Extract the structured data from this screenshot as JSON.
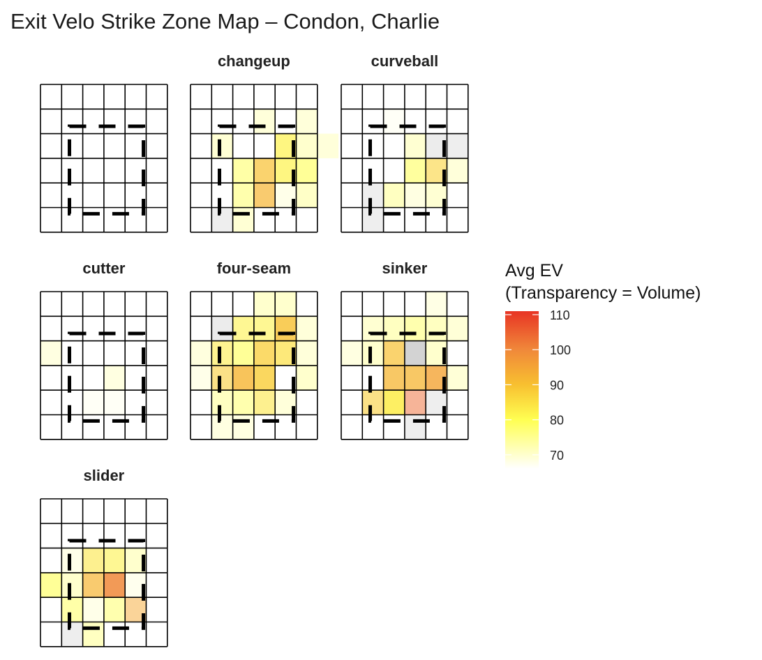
{
  "chart_data": {
    "type": "heatmap",
    "title": "Exit Velo Strike Zone Map – Condon, Charlie",
    "legend": {
      "title_lines": [
        "Avg EV",
        "(Transparency = Volume)"
      ],
      "ticks": [
        70,
        80,
        90,
        100,
        110
      ],
      "range": [
        66,
        111
      ],
      "gradient": [
        {
          "value": 66,
          "color": "#ffffff"
        },
        {
          "value": 80,
          "color": "#ffff52"
        },
        {
          "value": 90,
          "color": "#f8c030"
        },
        {
          "value": 100,
          "color": "#f0883a"
        },
        {
          "value": 111,
          "color": "#e83424"
        }
      ],
      "placement": "right"
    },
    "grid": {
      "rows": 6,
      "cols": 6,
      "strike_zone": "dashed box, columns 2-4, rows 2-5"
    },
    "cell_encoding": "each cell: [row, col, avg_ev, volume_alpha]; null avg_ev = grey cell",
    "pitch_types": [
      {
        "name": "",
        "cells": []
      },
      {
        "name": "changeup",
        "cells": [
          [
            1,
            3,
            72,
            0.5
          ],
          [
            1,
            5,
            72,
            0.5
          ],
          [
            2,
            1,
            73,
            0.5
          ],
          [
            2,
            4,
            82,
            0.7
          ],
          [
            2,
            5,
            74,
            0.5
          ],
          [
            2,
            6,
            72,
            0.5
          ],
          [
            3,
            2,
            78,
            0.6
          ],
          [
            3,
            3,
            90,
            0.7
          ],
          [
            3,
            4,
            82,
            0.7
          ],
          [
            3,
            5,
            80,
            0.6
          ],
          [
            4,
            2,
            77,
            0.6
          ],
          [
            4,
            3,
            92,
            0.7
          ],
          [
            4,
            4,
            70,
            0.45
          ],
          [
            4,
            5,
            75,
            0.5
          ],
          [
            5,
            1,
            null,
            0.3
          ],
          [
            5,
            2,
            73,
            0.5
          ]
        ]
      },
      {
        "name": "curveball",
        "cells": [
          [
            1,
            2,
            68,
            0.3
          ],
          [
            2,
            3,
            74,
            0.45
          ],
          [
            2,
            4,
            null,
            0.35
          ],
          [
            2,
            5,
            null,
            0.3
          ],
          [
            3,
            3,
            79,
            0.6
          ],
          [
            3,
            4,
            87,
            0.6
          ],
          [
            3,
            5,
            72,
            0.5
          ],
          [
            4,
            1,
            null,
            0.3
          ],
          [
            4,
            2,
            76,
            0.5
          ],
          [
            4,
            3,
            70,
            0.6
          ],
          [
            4,
            4,
            72,
            0.6
          ],
          [
            5,
            1,
            null,
            0.3
          ]
        ]
      },
      {
        "name": "cutter",
        "cells": [
          [
            2,
            0,
            72,
            0.4
          ],
          [
            3,
            3,
            72,
            0.4
          ],
          [
            4,
            2,
            68,
            0.35
          ],
          [
            4,
            3,
            68,
            0.35
          ]
        ]
      },
      {
        "name": "four-seam",
        "cells": [
          [
            0,
            3,
            74,
            0.5
          ],
          [
            0,
            4,
            74,
            0.5
          ],
          [
            1,
            1,
            null,
            0.35
          ],
          [
            1,
            2,
            82,
            0.6
          ],
          [
            1,
            3,
            82,
            0.6
          ],
          [
            1,
            4,
            90,
            0.8
          ],
          [
            1,
            5,
            72,
            0.5
          ],
          [
            2,
            0,
            72,
            0.45
          ],
          [
            2,
            1,
            83,
            0.6
          ],
          [
            2,
            2,
            80,
            0.6
          ],
          [
            2,
            3,
            88,
            0.75
          ],
          [
            2,
            4,
            85,
            0.7
          ],
          [
            2,
            5,
            72,
            0.5
          ],
          [
            3,
            0,
            70,
            0.45
          ],
          [
            3,
            1,
            88,
            0.6
          ],
          [
            3,
            2,
            92,
            0.8
          ],
          [
            3,
            3,
            88,
            0.8
          ],
          [
            3,
            5,
            74,
            0.5
          ],
          [
            4,
            1,
            76,
            0.5
          ],
          [
            4,
            2,
            78,
            0.55
          ],
          [
            4,
            3,
            84,
            0.6
          ],
          [
            4,
            4,
            72,
            0.5
          ],
          [
            5,
            1,
            72,
            0.4
          ],
          [
            5,
            2,
            72,
            0.4
          ]
        ]
      },
      {
        "name": "sinker",
        "cells": [
          [
            0,
            4,
            72,
            0.35
          ],
          [
            1,
            1,
            74,
            0.45
          ],
          [
            1,
            2,
            76,
            0.5
          ],
          [
            1,
            3,
            78,
            0.55
          ],
          [
            1,
            4,
            76,
            0.5
          ],
          [
            1,
            5,
            74,
            0.4
          ],
          [
            2,
            0,
            72,
            0.4
          ],
          [
            2,
            1,
            74,
            0.5
          ],
          [
            2,
            2,
            90,
            0.7
          ],
          [
            2,
            3,
            null,
            0.8
          ],
          [
            2,
            4,
            74,
            0.5
          ],
          [
            3,
            2,
            92,
            0.75
          ],
          [
            3,
            3,
            92,
            0.75
          ],
          [
            3,
            4,
            95,
            0.8
          ],
          [
            3,
            5,
            74,
            0.4
          ],
          [
            4,
            1,
            88,
            0.6
          ],
          [
            4,
            2,
            83,
            0.85
          ],
          [
            4,
            3,
            104,
            0.5
          ],
          [
            4,
            4,
            null,
            0.3
          ],
          [
            5,
            3,
            null,
            0.3
          ]
        ]
      },
      {
        "name": "slider",
        "cells": [
          [
            2,
            1,
            70,
            0.45
          ],
          [
            2,
            2,
            84,
            0.6
          ],
          [
            2,
            3,
            82,
            0.6
          ],
          [
            2,
            4,
            74,
            0.5
          ],
          [
            3,
            0,
            80,
            0.6
          ],
          [
            3,
            1,
            74,
            0.5
          ],
          [
            3,
            2,
            92,
            0.7
          ],
          [
            3,
            3,
            100,
            0.85
          ],
          [
            3,
            4,
            70,
            0.35
          ],
          [
            4,
            1,
            80,
            0.5
          ],
          [
            4,
            2,
            70,
            0.45
          ],
          [
            4,
            3,
            78,
            0.55
          ],
          [
            4,
            4,
            94,
            0.5
          ],
          [
            5,
            1,
            null,
            0.3
          ],
          [
            5,
            2,
            76,
            0.5
          ]
        ]
      }
    ]
  }
}
